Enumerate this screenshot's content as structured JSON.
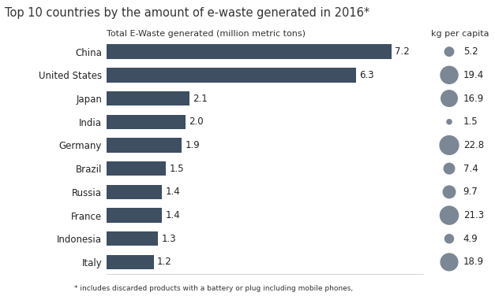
{
  "chart_data": [
    {
      "type": "bar",
      "orientation": "horizontal",
      "title": "Top 10 countries by the amount of e-waste generated in 2016*",
      "x_label": "Total E-Waste generated (million metric tons)",
      "categories": [
        "China",
        "United States",
        "Japan",
        "India",
        "Germany",
        "Brazil",
        "Russia",
        "France",
        "Indonesia",
        "Italy"
      ],
      "values": [
        7.2,
        6.3,
        2.1,
        2.0,
        1.9,
        1.5,
        1.4,
        1.4,
        1.3,
        1.2
      ],
      "color": "#3d4f61",
      "xlim": [
        0,
        8
      ],
      "data_labels": true,
      "tick_labels": "y",
      "grid": false,
      "annotation": "* includes discarded products with a battery or plug including mobile phones,"
    },
    {
      "type": "bubble",
      "title": "kg per capita",
      "categories": [
        "China",
        "United States",
        "Japan",
        "India",
        "Germany",
        "Brazil",
        "Russia",
        "France",
        "Indonesia",
        "Italy"
      ],
      "values": [
        5.2,
        19.4,
        16.9,
        1.5,
        22.8,
        7.4,
        9.7,
        21.3,
        4.9,
        18.9
      ],
      "color": "#7b8794",
      "data_labels": true,
      "tick_labels": false
    }
  ]
}
